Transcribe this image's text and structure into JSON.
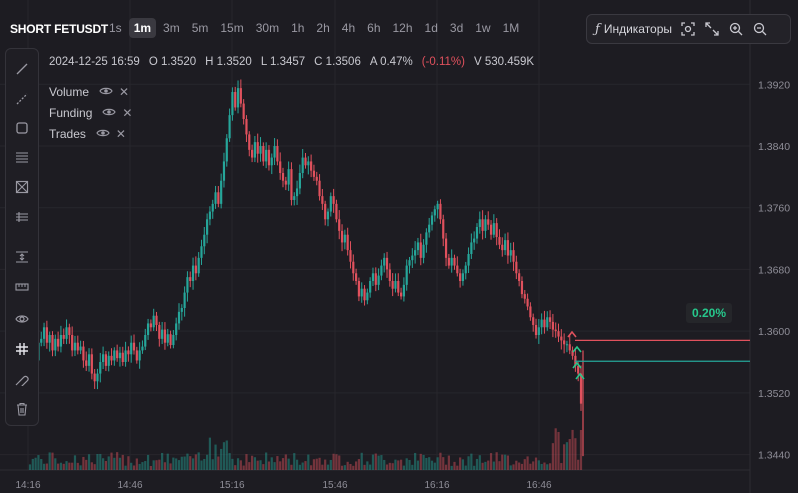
{
  "header": {
    "symbol": "SHORT FETUSDT",
    "timeframes": [
      "1s",
      "1m",
      "3m",
      "5m",
      "15m",
      "30m",
      "1h",
      "2h",
      "4h",
      "6h",
      "12h",
      "1d",
      "3d",
      "1w",
      "1M"
    ],
    "active_timeframe": "1m",
    "indicators_label": "Индикаторы"
  },
  "ohlc": {
    "datetime": "2024-12-25 16:59",
    "open": "O 1.3520",
    "high": "H 1.3520",
    "low": "L 1.3457",
    "close": "C 1.3506",
    "amplitude": "A 0.47%",
    "change": "(-0.11%)",
    "volume": "V 530.459K"
  },
  "legend": [
    "Volume",
    "Funding",
    "Trades"
  ],
  "sidebar_icons": [
    "trend-line-icon",
    "ray-icon",
    "rectangle-icon",
    "lines-icon",
    "cross-box-icon",
    "fib-icon",
    "range-icon",
    "ruler-icon",
    "eye-icon",
    "hashtag-icon",
    "magnet-icon",
    "trash-icon"
  ],
  "position_label": "0.20%",
  "colors": {
    "up": "#26a69a",
    "down": "#e0515d",
    "bg": "#1d1c22",
    "grid": "#27262c"
  },
  "chart_data": {
    "type": "candlestick",
    "y_axis_labels": [
      "1.3920",
      "1.3840",
      "1.3760",
      "1.3680",
      "1.3600",
      "1.3520",
      "1.3440"
    ],
    "x_axis_labels": [
      "14:16",
      "14:46",
      "15:16",
      "15:46",
      "16:16",
      "16:46"
    ],
    "ylim": [
      1.342,
      1.3945
    ],
    "entry_price": 1.3588,
    "target_price": 1.3561,
    "candles_close": [
      1.3555,
      1.356,
      1.3562,
      1.3585,
      1.359,
      1.3605,
      1.3585,
      1.3595,
      1.3575,
      1.359,
      1.358,
      1.3595,
      1.359,
      1.3605,
      1.3595,
      1.3575,
      1.3585,
      1.3575,
      1.358,
      1.3562,
      1.3555,
      1.357,
      1.3545,
      1.3535,
      1.3545,
      1.356,
      1.357,
      1.3555,
      1.3568,
      1.3562,
      1.3575,
      1.3565,
      1.3572,
      1.356,
      1.3575,
      1.357,
      1.3585,
      1.3575,
      1.3562,
      1.3575,
      1.358,
      1.3595,
      1.361,
      1.3605,
      1.362,
      1.3608,
      1.359,
      1.3602,
      1.3585,
      1.3596,
      1.3582,
      1.3595,
      1.361,
      1.3625,
      1.363,
      1.365,
      1.367,
      1.3665,
      1.3685,
      1.3675,
      1.3695,
      1.371,
      1.3725,
      1.3745,
      1.3755,
      1.3765,
      1.378,
      1.3765,
      1.3795,
      1.382,
      1.385,
      1.388,
      1.391,
      1.389,
      1.3915,
      1.3895,
      1.3875,
      1.3855,
      1.3835,
      1.3825,
      1.3845,
      1.383,
      1.384,
      1.382,
      1.3835,
      1.3815,
      1.3825,
      1.384,
      1.382,
      1.3805,
      1.3795,
      1.379,
      1.381,
      1.377,
      1.3775,
      1.3785,
      1.3805,
      1.3825,
      1.3815,
      1.382,
      1.3808,
      1.38,
      1.3795,
      1.3775,
      1.3765,
      1.3745,
      1.3755,
      1.3775,
      1.3765,
      1.3745,
      1.373,
      1.3715,
      1.3725,
      1.3705,
      1.369,
      1.3675,
      1.3665,
      1.3645,
      1.3655,
      1.364,
      1.365,
      1.3665,
      1.3675,
      1.366,
      1.3672,
      1.3685,
      1.3695,
      1.368,
      1.3665,
      1.3655,
      1.3665,
      1.365,
      1.3645,
      1.366,
      1.3685,
      1.3692,
      1.3698,
      1.3705,
      1.3715,
      1.3695,
      1.3712,
      1.3728,
      1.3738,
      1.375,
      1.3758,
      1.3765,
      1.3745,
      1.372,
      1.3695,
      1.3685,
      1.3695,
      1.3685,
      1.3675,
      1.3665,
      1.3675,
      1.3685,
      1.37,
      1.3715,
      1.372,
      1.3735,
      1.3745,
      1.373,
      1.3745,
      1.3738,
      1.3725,
      1.374,
      1.3722,
      1.3712,
      1.3705,
      1.3718,
      1.3698,
      1.3705,
      1.369,
      1.3675,
      1.3665,
      1.3648,
      1.3642,
      1.3632,
      1.3618,
      1.3608,
      1.3595,
      1.3605,
      1.3615,
      1.3605,
      1.3618,
      1.3612,
      1.3602,
      1.36,
      1.3593,
      1.3588,
      1.3583,
      1.3583,
      1.3575,
      1.3568,
      1.3555,
      1.3545,
      1.3506
    ]
  }
}
